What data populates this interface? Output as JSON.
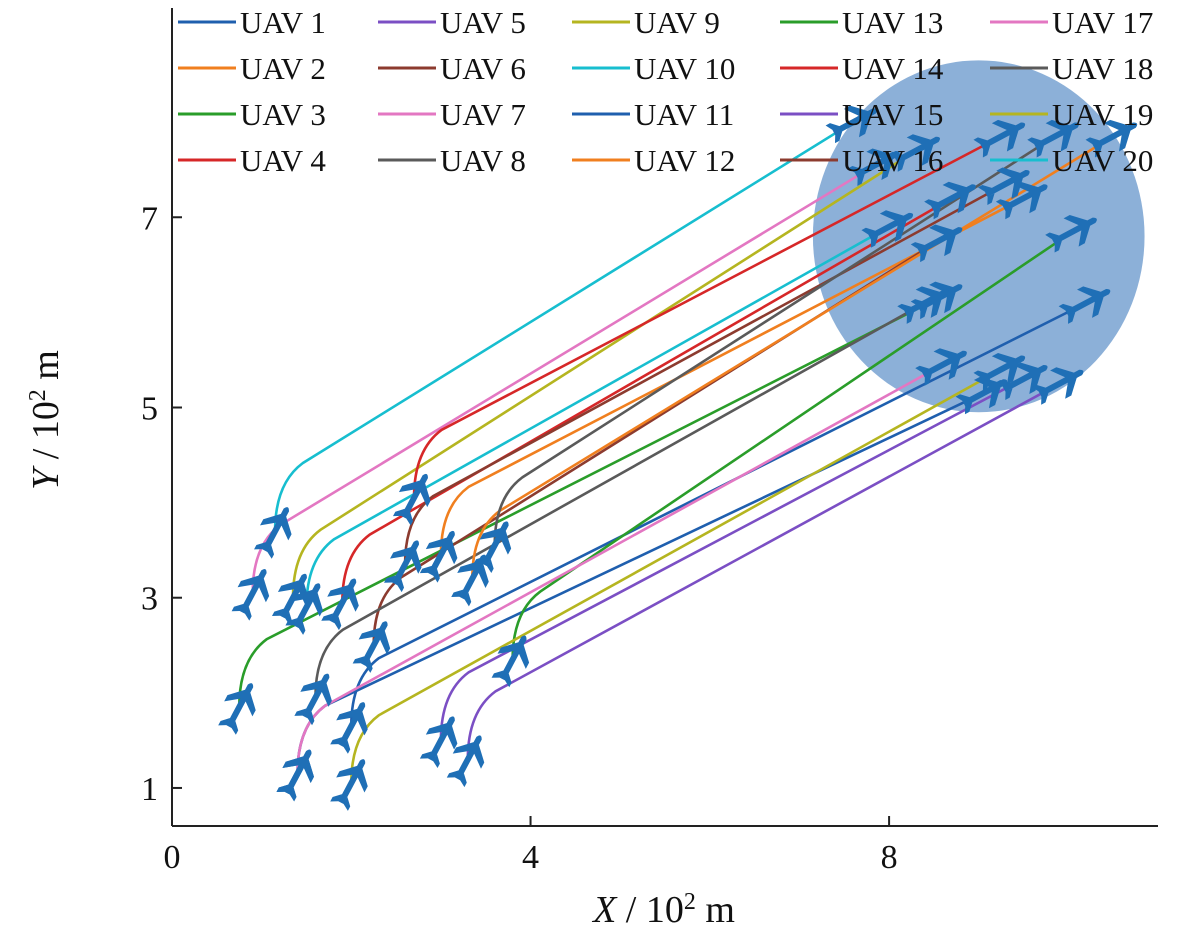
{
  "chart_data": {
    "type": "line",
    "xlabel": {
      "var": "X",
      "unit_pre": " / 10",
      "sup": "2",
      "unit_post": " m"
    },
    "ylabel": {
      "var": "Y",
      "unit_pre": " / 10",
      "sup": "2",
      "unit_post": " m"
    },
    "xlim": [
      0,
      11
    ],
    "ylim": [
      0.6,
      9.2
    ],
    "xticks": [
      0,
      4,
      8
    ],
    "yticks": [
      1,
      3,
      5,
      7
    ],
    "grid": false,
    "legend": {
      "placement": "top",
      "columns": 5
    },
    "target_area": {
      "center": [
        9.0,
        6.8
      ],
      "radius": 1.85,
      "color": "#5b8fc7"
    },
    "series": [
      {
        "name": "UAV 1",
        "color": "#1f5fae",
        "start": [
          2.0,
          1.65
        ],
        "end": [
          10.2,
          6.1
        ]
      },
      {
        "name": "UAV 2",
        "color": "#f07f1f",
        "start": [
          3.0,
          3.45
        ],
        "end": [
          9.5,
          7.2
        ]
      },
      {
        "name": "UAV 3",
        "color": "#2a9d2a",
        "start": [
          0.75,
          1.85
        ],
        "end": [
          8.55,
          6.15
        ]
      },
      {
        "name": "UAV 4",
        "color": "#d62728",
        "start": [
          1.9,
          2.95
        ],
        "end": [
          8.7,
          7.2
        ]
      },
      {
        "name": "UAV 5",
        "color": "#7b4fc4",
        "start": [
          3.0,
          1.5
        ],
        "end": [
          9.5,
          5.3
        ]
      },
      {
        "name": "UAV 6",
        "color": "#8c3b2f",
        "start": [
          2.25,
          2.5
        ],
        "end": [
          8.55,
          6.75
        ]
      },
      {
        "name": "UAV 7",
        "color": "#e377c2",
        "start": [
          0.9,
          3.05
        ],
        "end": [
          7.85,
          7.55
        ]
      },
      {
        "name": "UAV 8",
        "color": "#5a5a5a",
        "start": [
          1.6,
          1.95
        ],
        "end": [
          8.4,
          6.1
        ]
      },
      {
        "name": "UAV 9",
        "color": "#b5b520",
        "start": [
          1.35,
          3.0
        ],
        "end": [
          8.3,
          7.7
        ]
      },
      {
        "name": "UAV 10",
        "color": "#17becf",
        "start": [
          1.15,
          3.7
        ],
        "end": [
          7.6,
          8.0
        ]
      },
      {
        "name": "UAV 11",
        "color": "#1f5fae",
        "start": [
          1.4,
          1.15
        ],
        "end": [
          9.05,
          5.15
        ]
      },
      {
        "name": "UAV 12",
        "color": "#f07f1f",
        "start": [
          3.35,
          3.2
        ],
        "end": [
          10.5,
          7.85
        ]
      },
      {
        "name": "UAV 13",
        "color": "#2a9d2a",
        "start": [
          3.8,
          2.35
        ],
        "end": [
          10.05,
          6.85
        ]
      },
      {
        "name": "UAV 14",
        "color": "#d62728",
        "start": [
          2.7,
          4.05
        ],
        "end": [
          9.25,
          7.85
        ]
      },
      {
        "name": "UAV 15",
        "color": "#7b4fc4",
        "start": [
          3.3,
          1.3
        ],
        "end": [
          9.9,
          5.25
        ]
      },
      {
        "name": "UAV 16",
        "color": "#8c3b2f",
        "start": [
          2.6,
          3.35
        ],
        "end": [
          9.3,
          7.35
        ]
      },
      {
        "name": "UAV 17",
        "color": "#e377c2",
        "start": [
          1.4,
          1.15
        ],
        "end": [
          8.6,
          5.45
        ]
      },
      {
        "name": "UAV 18",
        "color": "#5a5a5a",
        "start": [
          3.6,
          3.55
        ],
        "end": [
          9.85,
          7.85
        ]
      },
      {
        "name": "UAV 19",
        "color": "#b5b520",
        "start": [
          2.0,
          1.05
        ],
        "end": [
          9.25,
          5.4
        ]
      },
      {
        "name": "UAV 20",
        "color": "#17becf",
        "start": [
          1.5,
          2.9
        ],
        "end": [
          8.0,
          6.9
        ]
      }
    ]
  }
}
